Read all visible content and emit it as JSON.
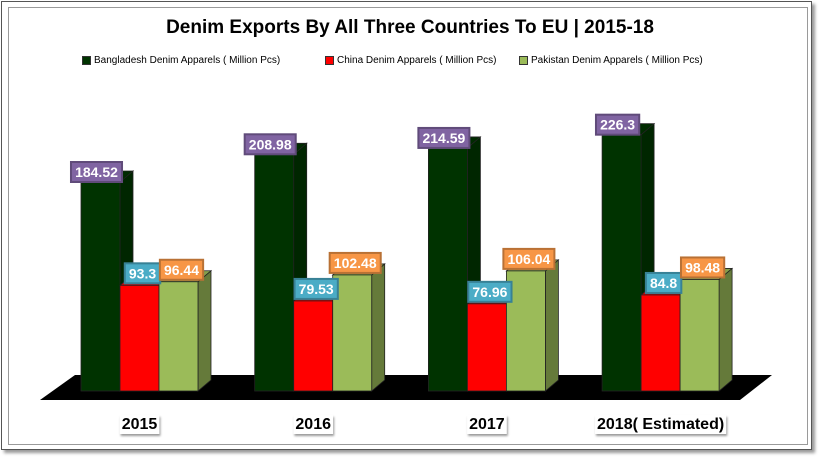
{
  "chart_data": {
    "type": "bar",
    "title": "Denim Exports By All Three Countries  To EU | 2015-18",
    "categories": [
      "2015",
      "2016",
      "2017",
      "2018( Estimated)"
    ],
    "series": [
      {
        "name": "Bangladesh  Denim Apparels ( Million Pcs)",
        "values": [
          184.52,
          208.98,
          214.59,
          226.3
        ],
        "labels": [
          "184.52",
          "208.98",
          "214.59",
          "226.3"
        ],
        "color": "#003300",
        "label_color": "#8064a2"
      },
      {
        "name": "China  Denim Apparels ( Million Pcs)",
        "values": [
          93.3,
          79.53,
          76.96,
          84.8
        ],
        "labels": [
          "93.3",
          "79.53",
          "76.96",
          "84.8"
        ],
        "color": "#ff0000",
        "label_color": "#4bacc6"
      },
      {
        "name": "Pakistan  Denim Apparels ( Million Pcs)",
        "values": [
          96.44,
          102.48,
          106.04,
          98.48
        ],
        "labels": [
          "96.44",
          "102.48",
          "106.04",
          "98.48"
        ],
        "color": "#9bbb59",
        "label_color": "#f79646"
      }
    ],
    "xlabel": "",
    "ylabel": "",
    "ylim": [
      0,
      240
    ],
    "grid": false,
    "legend": "top",
    "style": "3d-column"
  }
}
